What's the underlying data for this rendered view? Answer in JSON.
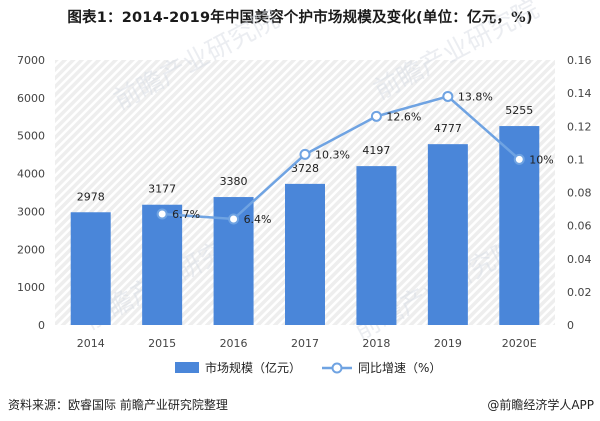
{
  "title": "图表1：2014-2019年中国美容个护市场规模及变化(单位：亿元，%)",
  "footer": {
    "source": "资料来源：欧睿国际  前瞻产业研究院整理",
    "brand": "@前瞻经济学人APP"
  },
  "watermark": "前瞻产业研究院",
  "colors": {
    "bar": "#4a86d9",
    "line": "#6fa3e2",
    "grid_bg": "#eeeeee",
    "stripe": "#ffffff"
  },
  "chart_data": {
    "type": "bar+line",
    "categories": [
      "2014",
      "2015",
      "2016",
      "2017",
      "2018",
      "2019",
      "2020E"
    ],
    "series": [
      {
        "name": "市场规模（亿元）",
        "type": "bar",
        "axis": "left",
        "values": [
          2978,
          3177,
          3380,
          3728,
          4197,
          4777,
          5255
        ],
        "labels": [
          "2978",
          "3177",
          "3380",
          "3728",
          "4197",
          "4777",
          "5255"
        ]
      },
      {
        "name": "同比增速（%）",
        "type": "line",
        "axis": "right",
        "values": [
          null,
          0.067,
          0.064,
          0.103,
          0.126,
          0.138,
          0.1
        ],
        "labels": [
          "",
          "6.7%",
          "6.4%",
          "10.3%",
          "12.6%",
          "13.8%",
          "10%"
        ]
      }
    ],
    "y_left": {
      "min": 0,
      "max": 7000,
      "ticks": [
        "0",
        "1000",
        "2000",
        "3000",
        "4000",
        "5000",
        "6000",
        "7000"
      ]
    },
    "y_right": {
      "min": 0,
      "max": 0.16,
      "ticks": [
        "0",
        "0.02",
        "0.04",
        "0.06",
        "0.08",
        "0.1",
        "0.12",
        "0.14",
        "0.16"
      ]
    },
    "legend": {
      "position": "bottom-center",
      "items": [
        "市场规模（亿元）",
        "同比增速（%）"
      ]
    }
  }
}
